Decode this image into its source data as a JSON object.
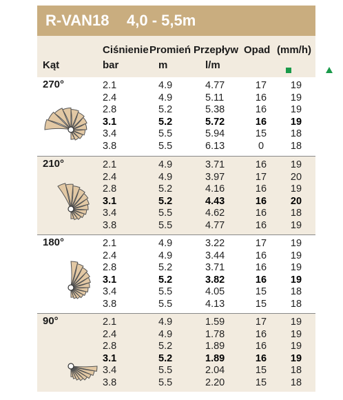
{
  "title": {
    "model": "R-VAN18",
    "range": "4,0 - 5,5m"
  },
  "headers": {
    "kat": "Kąt",
    "cisnienie": "Ciśnienie",
    "cisnienie_unit": "bar",
    "promien": "Promień",
    "promien_unit": "m",
    "przeplyw": "Przepływ",
    "przeplyw_unit": "l/m",
    "opad": "Opad",
    "opad_unit": "(mm/h)",
    "square_icon": "green-square-icon",
    "triangle_icon": "green-triangle-icon"
  },
  "sections": [
    {
      "angle": "270°",
      "rows": [
        [
          "2.1",
          "4.9",
          "4.77",
          "17",
          "19"
        ],
        [
          "2.4",
          "4.9",
          "5.11",
          "16",
          "19"
        ],
        [
          "2.8",
          "5.2",
          "5.38",
          "16",
          "19"
        ],
        [
          "3.1",
          "5.2",
          "5.72",
          "16",
          "19"
        ],
        [
          "3.4",
          "5.5",
          "5.94",
          "15",
          "18"
        ],
        [
          "3.8",
          "5.5",
          "6.13",
          "0",
          "18"
        ]
      ]
    },
    {
      "angle": "210°",
      "rows": [
        [
          "2.1",
          "4.9",
          "3.71",
          "16",
          "19"
        ],
        [
          "2.4",
          "4.9",
          "3.97",
          "17",
          "20"
        ],
        [
          "2.8",
          "5.2",
          "4.16",
          "16",
          "19"
        ],
        [
          "3.1",
          "5.2",
          "4.43",
          "16",
          "20"
        ],
        [
          "3.4",
          "5.5",
          "4.62",
          "16",
          "18"
        ],
        [
          "3.8",
          "5.5",
          "4.77",
          "16",
          "19"
        ]
      ]
    },
    {
      "angle": "180°",
      "rows": [
        [
          "2.1",
          "4.9",
          "3.22",
          "17",
          "19"
        ],
        [
          "2.4",
          "4.9",
          "3.44",
          "16",
          "19"
        ],
        [
          "2.8",
          "5.2",
          "3.71",
          "16",
          "19"
        ],
        [
          "3.1",
          "5.2",
          "3.82",
          "16",
          "19"
        ],
        [
          "3.4",
          "5.5",
          "4.05",
          "15",
          "18"
        ],
        [
          "3.8",
          "5.5",
          "4.13",
          "15",
          "18"
        ]
      ]
    },
    {
      "angle": "90°",
      "rows": [
        [
          "2.1",
          "4.9",
          "1.59",
          "17",
          "19"
        ],
        [
          "2.4",
          "4.9",
          "1.78",
          "16",
          "19"
        ],
        [
          "2.8",
          "5.2",
          "1.89",
          "16",
          "19"
        ],
        [
          "3.1",
          "5.2",
          "1.89",
          "16",
          "19"
        ],
        [
          "3.4",
          "5.5",
          "2.04",
          "15",
          "18"
        ],
        [
          "3.8",
          "5.5",
          "2.20",
          "15",
          "18"
        ]
      ]
    }
  ],
  "highlight_row_index": 3,
  "sweeps_deg": [
    270,
    210,
    180,
    90
  ],
  "colors": {
    "title_bg": "#c9ad7f",
    "shade_bg": "#f2ebdf",
    "fan_fill": "#e2c8a4",
    "fan_stroke": "#555555",
    "icon_green": "#1a9a4a"
  }
}
